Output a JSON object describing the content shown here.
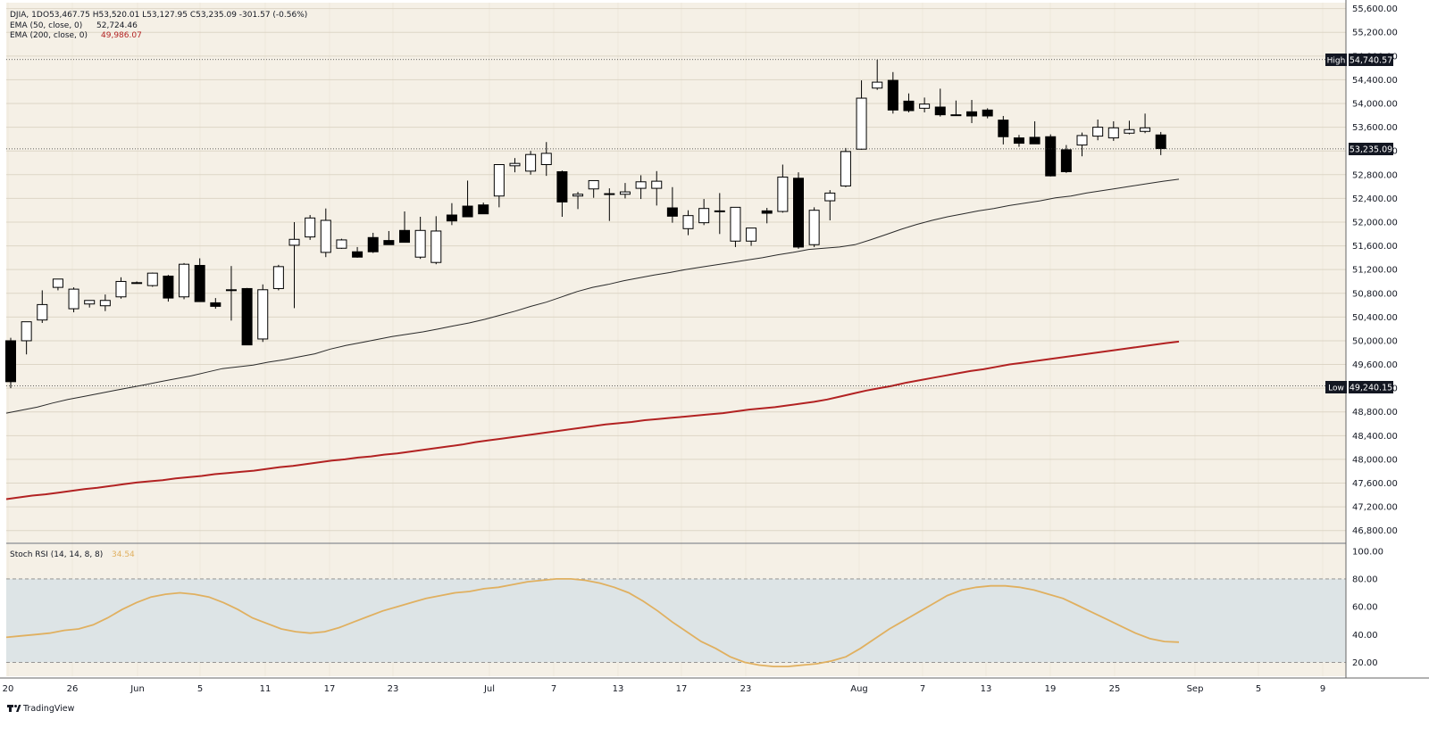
{
  "legend": {
    "symbol": "DJIA, 1D",
    "ohlc": "O53,467.75 H53,520.01 L53,127.95 C53,235.09 -301.57 (-0.56%)",
    "ema50_label": "EMA (50, close, 0)",
    "ema50_value": "52,724.46",
    "ema200_label": "EMA (200, close, 0)",
    "ema200_value": "49,986.07",
    "stoch_label": "Stoch RSI (14, 14, 8, 8)",
    "stoch_value": "34.54"
  },
  "markers": {
    "high_tag": "High",
    "high_value": "54,740.57",
    "low_tag": "Low",
    "low_value": "49,240.15",
    "last_value": "53,235.09"
  },
  "watermark": "TradingView",
  "colors": {
    "background": "#f5f0e6",
    "grid": "#ddd6c6",
    "candle_body": "#000000",
    "ema50": "#2a2a2a",
    "ema200": "#b22222",
    "stoch": "#e0b060",
    "stoch_band": "#dde4e6",
    "tag_bg": "#131722"
  },
  "chart_data": {
    "type": "candlestick",
    "y_ticks": [
      "46,800.00",
      "47,200.00",
      "47,600.00",
      "48,000.00",
      "48,400.00",
      "48,800.00",
      "49,200.00",
      "49,600.00",
      "50,000.00",
      "50,400.00",
      "50,800.00",
      "51,200.00",
      "51,600.00",
      "52,000.00",
      "52,400.00",
      "52,800.00",
      "53,200.00",
      "53,600.00",
      "54,000.00",
      "54,400.00",
      "54,800.00",
      "55,200.00",
      "55,600.00"
    ],
    "y_tick_values": [
      46800,
      47200,
      47600,
      48000,
      48400,
      48800,
      49200,
      49600,
      50000,
      50400,
      50800,
      51200,
      51600,
      52000,
      52400,
      52800,
      53200,
      53600,
      54000,
      54400,
      54800,
      55200,
      55600
    ],
    "ylim": [
      46600,
      55700
    ],
    "x_labels": [
      "20",
      "26",
      "Jun",
      "5",
      "11",
      "17",
      "23",
      "Jul",
      "7",
      "13",
      "17",
      "23",
      "Aug",
      "7",
      "13",
      "19",
      "25",
      "Sep",
      "5",
      "9"
    ],
    "candles": [
      {
        "o": 50000,
        "h": 50050,
        "l": 49200,
        "c": 49310
      },
      {
        "o": 50000,
        "h": 50300,
        "l": 49770,
        "c": 50320
      },
      {
        "o": 50350,
        "h": 50850,
        "l": 50300,
        "c": 50610
      },
      {
        "o": 50900,
        "h": 51040,
        "l": 50850,
        "c": 51040
      },
      {
        "o": 50540,
        "h": 50900,
        "l": 50480,
        "c": 50870
      },
      {
        "o": 50620,
        "h": 50680,
        "l": 50560,
        "c": 50680
      },
      {
        "o": 50590,
        "h": 50780,
        "l": 50500,
        "c": 50680
      },
      {
        "o": 50740,
        "h": 51070,
        "l": 50710,
        "c": 51000
      },
      {
        "o": 50980,
        "h": 51000,
        "l": 50960,
        "c": 50970
      },
      {
        "o": 50930,
        "h": 51150,
        "l": 50910,
        "c": 51140
      },
      {
        "o": 51090,
        "h": 51110,
        "l": 50660,
        "c": 50720
      },
      {
        "o": 50740,
        "h": 51310,
        "l": 50700,
        "c": 51290
      },
      {
        "o": 51270,
        "h": 51390,
        "l": 50660,
        "c": 50660
      },
      {
        "o": 50640,
        "h": 50720,
        "l": 50540,
        "c": 50580
      },
      {
        "o": 50860,
        "h": 51260,
        "l": 50340,
        "c": 50860
      },
      {
        "o": 50880,
        "h": 50890,
        "l": 49930,
        "c": 49930
      },
      {
        "o": 50030,
        "h": 50950,
        "l": 49980,
        "c": 50860
      },
      {
        "o": 50880,
        "h": 51280,
        "l": 50850,
        "c": 51250
      },
      {
        "o": 51610,
        "h": 52000,
        "l": 50550,
        "c": 51710
      },
      {
        "o": 51750,
        "h": 52120,
        "l": 51700,
        "c": 52070
      },
      {
        "o": 51490,
        "h": 52230,
        "l": 51410,
        "c": 52030
      },
      {
        "o": 51560,
        "h": 51720,
        "l": 51550,
        "c": 51700
      },
      {
        "o": 51500,
        "h": 51580,
        "l": 51400,
        "c": 51410
      },
      {
        "o": 51740,
        "h": 51820,
        "l": 51480,
        "c": 51500
      },
      {
        "o": 51690,
        "h": 51850,
        "l": 51620,
        "c": 51620
      },
      {
        "o": 51860,
        "h": 52180,
        "l": 51700,
        "c": 51660
      },
      {
        "o": 51410,
        "h": 52090,
        "l": 51380,
        "c": 51860
      },
      {
        "o": 51320,
        "h": 52100,
        "l": 51290,
        "c": 51850
      },
      {
        "o": 52120,
        "h": 52320,
        "l": 51950,
        "c": 52020
      },
      {
        "o": 52270,
        "h": 52700,
        "l": 52160,
        "c": 52090
      },
      {
        "o": 52290,
        "h": 52330,
        "l": 52180,
        "c": 52140
      },
      {
        "o": 52440,
        "h": 52900,
        "l": 52250,
        "c": 52970
      },
      {
        "o": 52950,
        "h": 53080,
        "l": 52840,
        "c": 52990
      },
      {
        "o": 52860,
        "h": 53200,
        "l": 52800,
        "c": 53140
      },
      {
        "o": 52970,
        "h": 53350,
        "l": 52780,
        "c": 53160
      },
      {
        "o": 52850,
        "h": 52870,
        "l": 52090,
        "c": 52340
      },
      {
        "o": 52440,
        "h": 52510,
        "l": 52220,
        "c": 52470
      },
      {
        "o": 52560,
        "h": 52650,
        "l": 52410,
        "c": 52700
      },
      {
        "o": 52480,
        "h": 52570,
        "l": 52020,
        "c": 52480
      },
      {
        "o": 52470,
        "h": 52660,
        "l": 52400,
        "c": 52510
      },
      {
        "o": 52570,
        "h": 52790,
        "l": 52390,
        "c": 52680
      },
      {
        "o": 52570,
        "h": 52860,
        "l": 52280,
        "c": 52690
      },
      {
        "o": 52240,
        "h": 52590,
        "l": 51990,
        "c": 52100
      },
      {
        "o": 51890,
        "h": 52200,
        "l": 51780,
        "c": 52110
      },
      {
        "o": 51990,
        "h": 52390,
        "l": 51950,
        "c": 52230
      },
      {
        "o": 52190,
        "h": 52490,
        "l": 51800,
        "c": 52190
      },
      {
        "o": 51680,
        "h": 52200,
        "l": 51580,
        "c": 52250
      },
      {
        "o": 51680,
        "h": 51880,
        "l": 51600,
        "c": 51900
      },
      {
        "o": 52190,
        "h": 52240,
        "l": 51980,
        "c": 52150
      },
      {
        "o": 52180,
        "h": 52970,
        "l": 52160,
        "c": 52760
      },
      {
        "o": 52740,
        "h": 52840,
        "l": 51550,
        "c": 51580
      },
      {
        "o": 51620,
        "h": 52250,
        "l": 51580,
        "c": 52200
      },
      {
        "o": 52360,
        "h": 52540,
        "l": 52030,
        "c": 52490
      },
      {
        "o": 52610,
        "h": 53250,
        "l": 52590,
        "c": 53190
      },
      {
        "o": 53230,
        "h": 54390,
        "l": 53220,
        "c": 54090
      },
      {
        "o": 54260,
        "h": 54740,
        "l": 54230,
        "c": 54360
      },
      {
        "o": 54390,
        "h": 54530,
        "l": 53830,
        "c": 53890
      },
      {
        "o": 54040,
        "h": 54170,
        "l": 53850,
        "c": 53880
      },
      {
        "o": 53920,
        "h": 54100,
        "l": 53850,
        "c": 53990
      },
      {
        "o": 53940,
        "h": 54250,
        "l": 53780,
        "c": 53810
      },
      {
        "o": 53810,
        "h": 54050,
        "l": 53790,
        "c": 53800
      },
      {
        "o": 53860,
        "h": 54060,
        "l": 53670,
        "c": 53790
      },
      {
        "o": 53890,
        "h": 53920,
        "l": 53750,
        "c": 53790
      },
      {
        "o": 53720,
        "h": 53790,
        "l": 53310,
        "c": 53440
      },
      {
        "o": 53420,
        "h": 53470,
        "l": 53270,
        "c": 53330
      },
      {
        "o": 53430,
        "h": 53700,
        "l": 53350,
        "c": 53320
      },
      {
        "o": 53440,
        "h": 53480,
        "l": 52770,
        "c": 52780
      },
      {
        "o": 53220,
        "h": 53300,
        "l": 52830,
        "c": 52850
      },
      {
        "o": 53300,
        "h": 53510,
        "l": 53110,
        "c": 53460
      },
      {
        "o": 53450,
        "h": 53730,
        "l": 53380,
        "c": 53600
      },
      {
        "o": 53420,
        "h": 53700,
        "l": 53370,
        "c": 53590
      },
      {
        "o": 53500,
        "h": 53710,
        "l": 53480,
        "c": 53560
      },
      {
        "o": 53530,
        "h": 53830,
        "l": 53500,
        "c": 53590
      },
      {
        "o": 53470,
        "h": 53520,
        "l": 53130,
        "c": 53240
      }
    ],
    "ema50": [
      48780,
      48830,
      48880,
      48950,
      49010,
      49060,
      49110,
      49160,
      49210,
      49260,
      49310,
      49360,
      49410,
      49470,
      49530,
      49560,
      49590,
      49640,
      49680,
      49730,
      49780,
      49860,
      49920,
      49970,
      50020,
      50070,
      50110,
      50150,
      50200,
      50250,
      50300,
      50360,
      50430,
      50500,
      50580,
      50650,
      50740,
      50830,
      50900,
      50950,
      51010,
      51060,
      51110,
      51150,
      51200,
      51240,
      51280,
      51320,
      51360,
      51400,
      51450,
      51490,
      51540,
      51560,
      51580,
      51620,
      51700,
      51790,
      51880,
      51960,
      52030,
      52090,
      52140,
      52190,
      52230,
      52280,
      52320,
      52360,
      52410,
      52440,
      52490,
      52530,
      52570,
      52610,
      52650,
      52690,
      52724
    ],
    "ema200": [
      47330,
      47360,
      47390,
      47410,
      47440,
      47470,
      47500,
      47520,
      47550,
      47580,
      47610,
      47630,
      47650,
      47680,
      47700,
      47720,
      47750,
      47770,
      47790,
      47810,
      47840,
      47870,
      47890,
      47920,
      47950,
      47980,
      48000,
      48030,
      48050,
      48080,
      48100,
      48130,
      48160,
      48190,
      48220,
      48250,
      48290,
      48320,
      48350,
      48380,
      48410,
      48440,
      48470,
      48500,
      48530,
      48560,
      48590,
      48610,
      48630,
      48660,
      48680,
      48700,
      48720,
      48740,
      48760,
      48780,
      48810,
      48840,
      48860,
      48880,
      48910,
      48940,
      48970,
      49010,
      49060,
      49110,
      49160,
      49200,
      49240,
      49290,
      49330,
      49370,
      49410,
      49450,
      49490,
      49520,
      49560,
      49600,
      49630,
      49660,
      49690,
      49720,
      49750,
      49780,
      49810,
      49840,
      49870,
      49900,
      49930,
      49960,
      49986
    ],
    "stoch_ticks": [
      "20.00",
      "40.00",
      "60.00",
      "80.00",
      "100.00"
    ],
    "stoch_tick_values": [
      20,
      40,
      60,
      80,
      100
    ],
    "stoch_ylim": [
      10,
      105
    ],
    "stoch_band": [
      20,
      80
    ],
    "stoch": [
      38,
      39,
      40,
      41,
      43,
      44,
      47,
      52,
      58,
      63,
      67,
      69,
      70,
      69,
      67,
      63,
      58,
      52,
      48,
      44,
      42,
      41,
      42,
      45,
      49,
      53,
      57,
      60,
      63,
      66,
      68,
      70,
      71,
      73,
      74,
      76,
      78,
      79,
      80,
      80,
      79,
      77,
      74,
      70,
      64,
      57,
      49,
      42,
      35,
      30,
      24,
      20,
      18,
      17,
      17,
      18,
      19,
      21,
      24,
      30,
      37,
      44,
      50,
      56,
      62,
      68,
      72,
      74,
      75,
      75,
      74,
      72,
      69,
      66,
      61,
      56,
      51,
      46,
      41,
      37,
      35,
      34.5
    ]
  }
}
